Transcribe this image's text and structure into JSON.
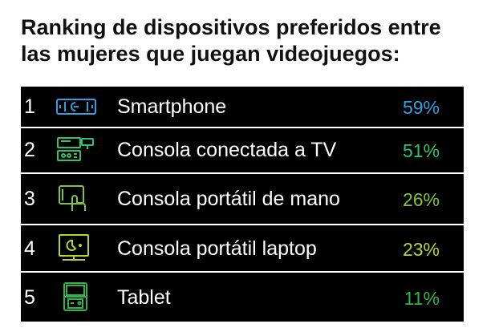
{
  "chart_data": {
    "type": "table",
    "title_lines": [
      "Ranking de dispositivos preferidos entre",
      "las mujeres que juegan videojuegos:"
    ],
    "rows": [
      {
        "rank": "1",
        "label": "Smartphone",
        "value": "59%",
        "icon": "smartphone-icon",
        "color": "#2f9fe0"
      },
      {
        "rank": "2",
        "label": "Consola conectada a TV",
        "value": "51%",
        "icon": "game-console-tv-icon",
        "color": "#2fc46a"
      },
      {
        "rank": "3",
        "label": "Consola portátil de mano",
        "value": "26%",
        "icon": "handheld-tablet-icon",
        "color": "#7cc63a"
      },
      {
        "rank": "4",
        "label": "Consola portátil laptop",
        "value": "23%",
        "icon": "laptop-monitor-icon",
        "color": "#b6d42a"
      },
      {
        "rank": "5",
        "label": "Tablet",
        "value": "11%",
        "icon": "portable-console-icon",
        "color": "#2eb54a"
      }
    ]
  }
}
